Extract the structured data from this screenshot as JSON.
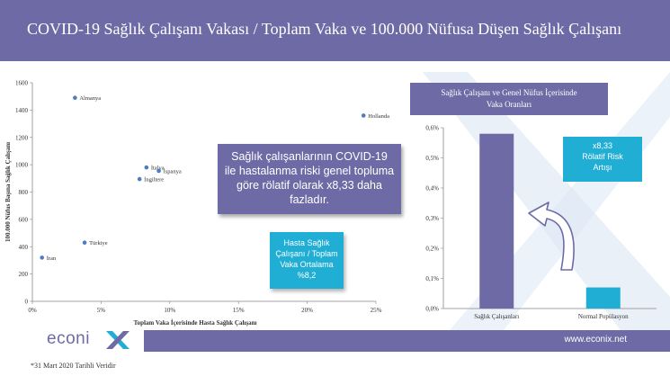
{
  "header": {
    "title": "COVID-19 Sağlık Çalışanı Vakası / Toplam Vaka ve 100.000 Nüfusa Düşen Sağlık Çalışanı"
  },
  "chart_data": [
    {
      "type": "scatter",
      "xlabel": "Toplam Vaka İçerisinde Hasta Sağlık Çalışanı",
      "ylabel": "100.000 Nüfus Başına Sağlık Çalışanı",
      "xlim": [
        0,
        0.25
      ],
      "ylim": [
        0,
        1600
      ],
      "x_ticks": [
        "0%",
        "5%",
        "10%",
        "15%",
        "20%",
        "25%"
      ],
      "y_ticks": [
        "0",
        "200",
        "400",
        "600",
        "800",
        "1000",
        "1200",
        "1400",
        "1600"
      ],
      "grid": false,
      "points": [
        {
          "label": "Almanya",
          "x": 0.031,
          "y": 1490
        },
        {
          "label": "Hollanda",
          "x": 0.241,
          "y": 1360
        },
        {
          "label": "İtalya",
          "x": 0.083,
          "y": 980
        },
        {
          "label": "İspanya",
          "x": 0.092,
          "y": 955
        },
        {
          "label": "İngiltere",
          "x": 0.078,
          "y": 895
        },
        {
          "label": "Türkiye",
          "x": 0.038,
          "y": 430
        },
        {
          "label": "İran",
          "x": 0.007,
          "y": 320
        }
      ]
    },
    {
      "type": "bar",
      "title": "Sağlık Çalışanı ve Genel Nüfus İçerisinde Vaka Oranları",
      "categories": [
        "Sağlık Çalışanları",
        "Normal Popülasyon"
      ],
      "values": [
        0.58,
        0.07
      ],
      "ylim": [
        0,
        0.6
      ],
      "y_ticks": [
        "0,0%",
        "0,1%",
        "0,2%",
        "0,3%",
        "0,4%",
        "0,5%",
        "0,6%"
      ],
      "grid": false
    }
  ],
  "callouts": {
    "main_lines": [
      "Sağlık çalışanlarının COVID-19",
      "ile hastalanma riski genel topluma",
      "göre rölatif olarak x8,33 daha",
      "fazladır."
    ],
    "avg_lines": [
      "Hasta Sağlık",
      "Çalışanı / Toplam",
      "Vaka Ortalama",
      "%8,2"
    ],
    "risk_lines": [
      "x8,33",
      "Rölatif Risk",
      "Artışı"
    ]
  },
  "colors": {
    "purple": "#6e6aa5",
    "cyan": "#20aed5",
    "point": "#4a7ebf",
    "bar1": "#6e6aa5",
    "bar2": "#20aed5"
  },
  "footer": {
    "logo": "econi",
    "website": "www.econix.net",
    "note": "*31 Mart 2020 Tarihli Veridir"
  }
}
